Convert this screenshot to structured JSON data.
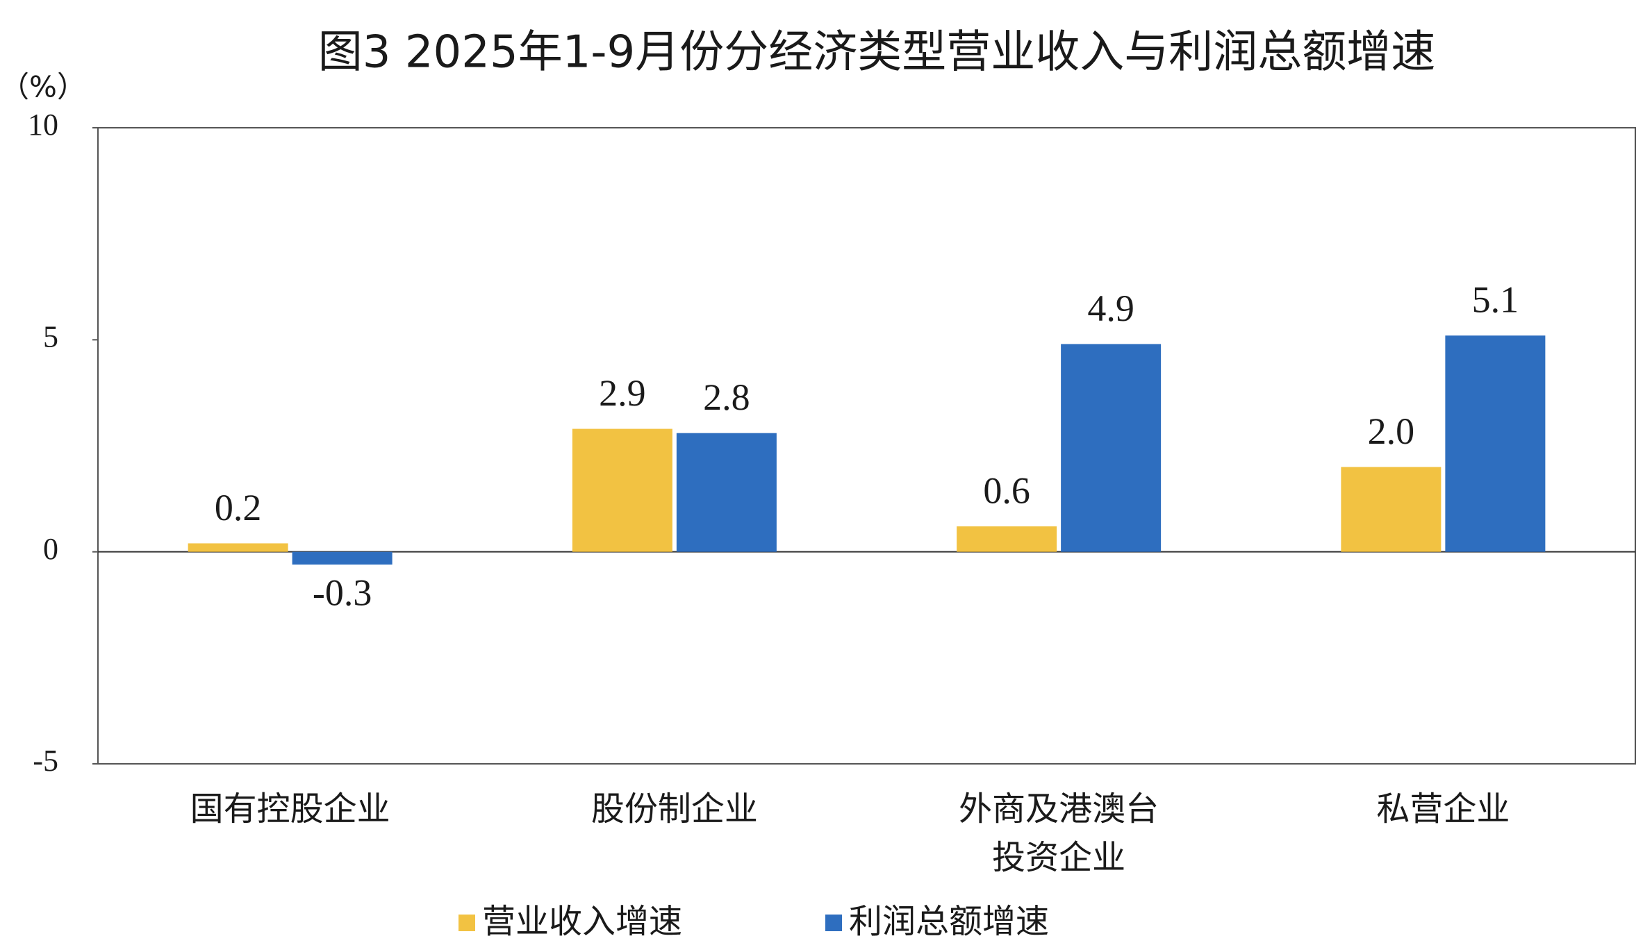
{
  "chart_data": {
    "type": "bar",
    "title": "图3 2025年1-9月份分经济类型营业收入与利润总额增速",
    "y_label": "（%）",
    "categories": [
      "国有控股企业",
      "股份制企业",
      "外商及港澳台\n投资企业",
      "私营企业"
    ],
    "series": [
      {
        "name": "营业收入增速",
        "color": "#f2c242",
        "values": [
          0.2,
          2.9,
          0.6,
          2.0
        ],
        "value_labels": [
          "0.2",
          "2.9",
          "0.6",
          "2.0"
        ]
      },
      {
        "name": "利润总额增速",
        "color": "#2e6ebf",
        "values": [
          -0.3,
          2.8,
          4.9,
          5.1
        ],
        "value_labels": [
          "-0.3",
          "2.8",
          "4.9",
          "5.1"
        ]
      }
    ],
    "ylim": [
      -5,
      10
    ],
    "yticks": [
      -5,
      0,
      5,
      10
    ],
    "grid": false
  }
}
